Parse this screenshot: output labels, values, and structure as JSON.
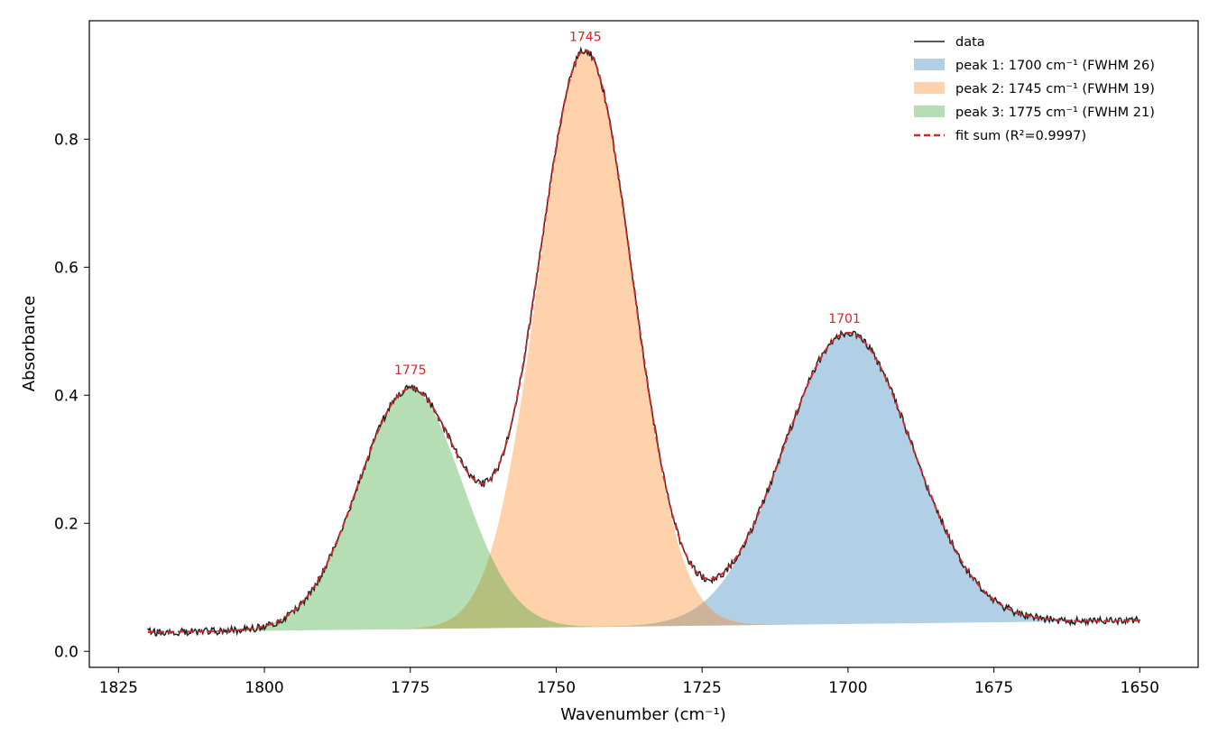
{
  "chart_data": {
    "type": "line",
    "xlabel": "Wavenumber (cm⁻¹)",
    "ylabel": "Absorbance",
    "xlim": [
      1830,
      1640
    ],
    "ylim": [
      -0.025,
      0.985
    ],
    "x_reversed": true,
    "x_ticks": [
      1825,
      1800,
      1775,
      1750,
      1725,
      1700,
      1675,
      1650
    ],
    "y_ticks": [
      0.0,
      0.2,
      0.4,
      0.6,
      0.8
    ],
    "x_range": [
      1650,
      1820
    ],
    "baseline": {
      "at_1820": 0.03,
      "at_1650": 0.048
    },
    "grid": false,
    "legend_position": "top-right",
    "series": [
      {
        "name": "data",
        "kind": "line",
        "color": "#222222"
      },
      {
        "name": "peak 1: 1700 cm⁻¹ (FWHM 26)",
        "kind": "area",
        "center": 1700,
        "fwhm": 26,
        "height": 0.455,
        "color": "#1f77b4"
      },
      {
        "name": "peak 2: 1745 cm⁻¹ (FWHM 19)",
        "kind": "area",
        "center": 1745,
        "fwhm": 19,
        "height": 0.9,
        "color": "#ff7f0e"
      },
      {
        "name": "peak 3: 1775 cm⁻¹ (FWHM 21)",
        "kind": "area",
        "center": 1775,
        "fwhm": 21,
        "height": 0.375,
        "color": "#2ca02c"
      },
      {
        "name": "fit sum (R²=0.9997)",
        "kind": "dashed-line",
        "color": "#d62728"
      }
    ],
    "annotations": [
      {
        "text": "1745",
        "x": 1745,
        "y": 0.953
      },
      {
        "text": "1701",
        "x": 1700.6,
        "y": 0.513
      },
      {
        "text": "1775",
        "x": 1775,
        "y": 0.433
      }
    ],
    "annotation_color": "#d62728"
  }
}
